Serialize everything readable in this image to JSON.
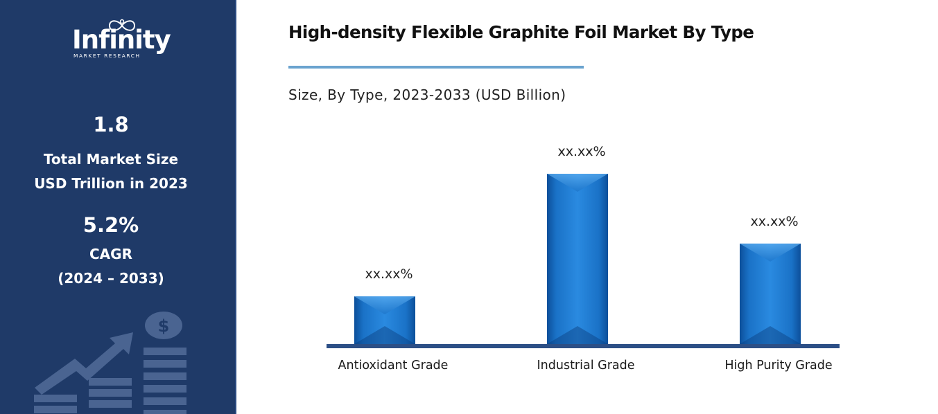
{
  "brand": {
    "logo_word": "Infinity",
    "logo_sub": "MARKET RESEARCH"
  },
  "sidebar": {
    "market_size_value": "1.8",
    "market_size_label_line1": "Total Market Size",
    "market_size_label_line2": "USD Trillion in 2023",
    "cagr_value": "5.2%",
    "cagr_label": "CAGR",
    "cagr_period": "(2024 – 2033)",
    "background_color": "#1f3a68",
    "decoration_icons": [
      "growth-arrow-icon",
      "dollar-coin-icon",
      "bar-stack-icon"
    ]
  },
  "chart_data": {
    "type": "bar",
    "title": "High-density Flexible Graphite Foil Market By Type",
    "subtitle": "Size, By Type, 2023-2033 (USD Billion)",
    "categories": [
      "Antioxidant Grade",
      "Industrial Grade",
      "High Purity Grade"
    ],
    "values": [
      28,
      100,
      59
    ],
    "value_labels": [
      "xx.xx%",
      "xx.xx%",
      "xx.xx%"
    ],
    "xlabel": "",
    "ylabel": "",
    "ylim": [
      0,
      100
    ],
    "grid": false,
    "legend": "none",
    "bar_color": "#1a72c7",
    "axis_color": "#2c4f86",
    "accent_color": "#6aa3cf"
  }
}
